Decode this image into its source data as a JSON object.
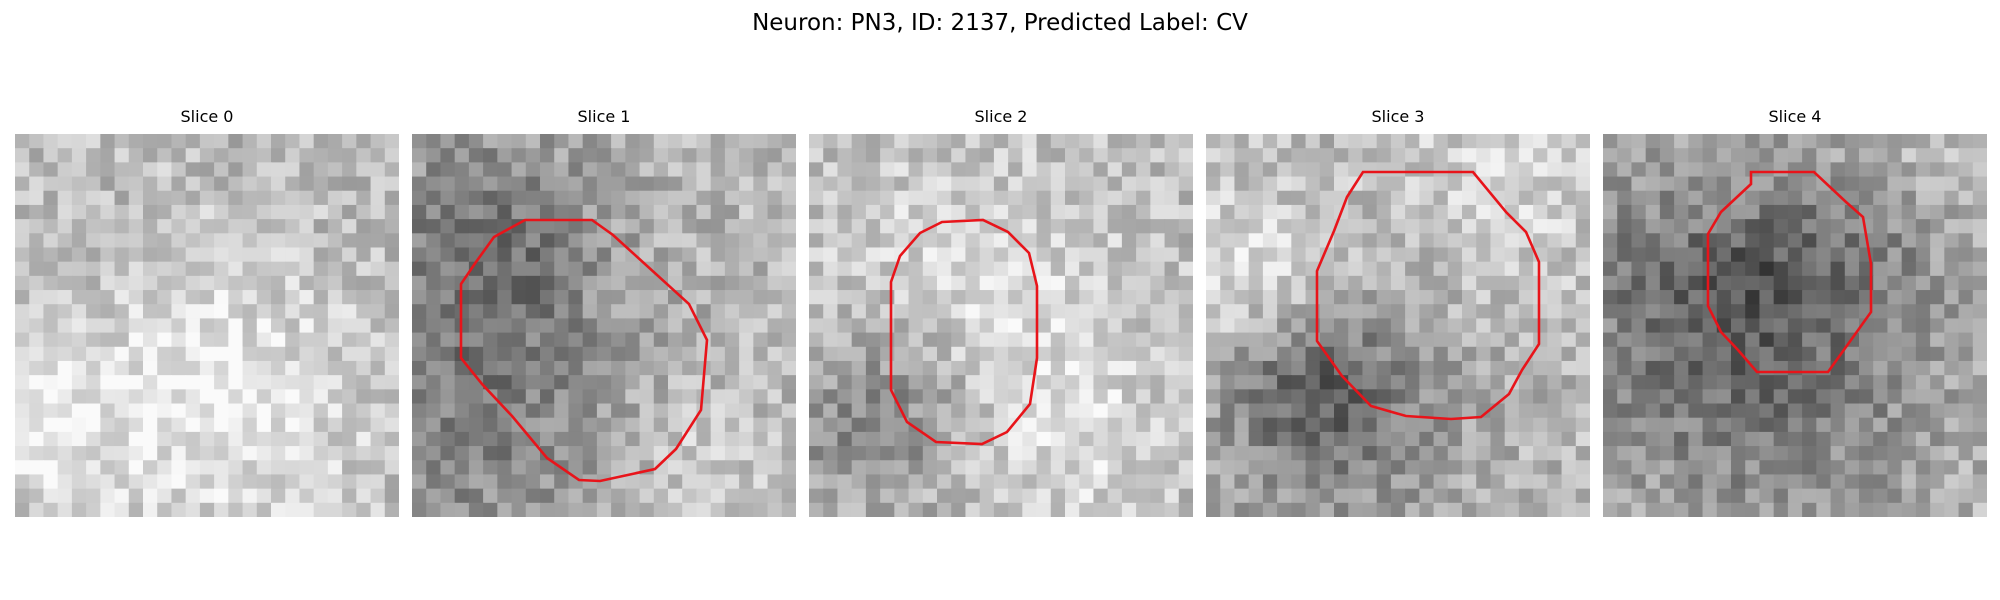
{
  "figure": {
    "title": "Neuron: PN3, ID: 2137, Predicted Label: CV"
  },
  "colors": {
    "contour": "#e8141a",
    "background": "#ffffff"
  },
  "panels": [
    {
      "title": "Slice 0",
      "has_contour": false
    },
    {
      "title": "Slice 1",
      "has_contour": true
    },
    {
      "title": "Slice 2",
      "has_contour": true
    },
    {
      "title": "Slice 3",
      "has_contour": true
    },
    {
      "title": "Slice 4",
      "has_contour": true
    }
  ]
}
